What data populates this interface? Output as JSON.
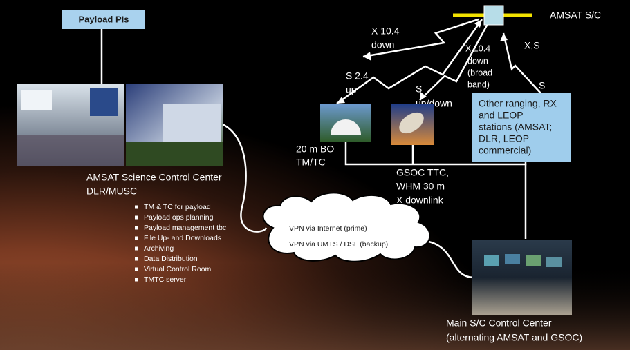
{
  "payload_pis": "Payload PIs",
  "spacecraft": {
    "label": "AMSAT S/C"
  },
  "links": {
    "x_down_left": [
      "X 10.4",
      "down"
    ],
    "x_down_broadband": [
      "X 10.4",
      "down",
      "(broad",
      "band)"
    ],
    "xs": "X,S",
    "s_up": [
      "S 2.4",
      "up"
    ],
    "s_updown": [
      "S",
      "up/down"
    ],
    "s_right": "S"
  },
  "other_stations": [
    "Other ranging, RX",
    "and LEOP",
    "stations (AMSAT;",
    "DLR, LEOP",
    "commercial)"
  ],
  "bo_station": [
    "20 m BO",
    "TM/TC"
  ],
  "gsoc_station": [
    "GSOC TTC,",
    "WHM 30 m",
    "X downlink"
  ],
  "science_center": {
    "title": [
      "AMSAT Science Control Center",
      "DLR/MUSC"
    ],
    "tasks": [
      "TM & TC for payload",
      "Payload ops planning",
      "Payload management tbc",
      "File Up- and Downloads",
      "Archiving",
      "Data Distribution",
      "Virtual Control Room",
      "TMTC server"
    ]
  },
  "vpn": [
    "VPN via Internet (prime)",
    "VPN via UMTS / DSL (backup)"
  ],
  "main_center": [
    "Main S/C  Control Center",
    "(alternating AMSAT and GSOC)"
  ]
}
